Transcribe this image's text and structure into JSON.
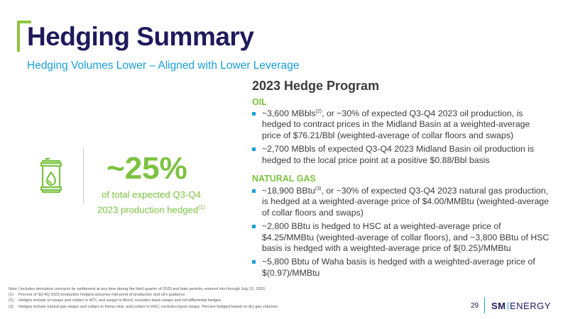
{
  "slide": {
    "title": "Hedging Summary",
    "subtitle": "Hedging Volumes Lower – Aligned with Lower Leverage",
    "page_number": "29"
  },
  "stat": {
    "value": "~25%",
    "desc_line1": "of total expected Q3-Q4",
    "desc_line2": "2023 production hedged",
    "desc_ref": "(1)",
    "icon": "oil-barrel-icon"
  },
  "program": {
    "title": "2023 Hedge Program",
    "oil": {
      "heading": "OIL",
      "bullets": [
        {
          "pre": "~3,600 MBbls",
          "ref": "(2)",
          "post": ", or ~30% of expected Q3-Q4 2023 oil production, is hedged to contract prices in the Midland Basin at a weighted-average price of $76.21/Bbl (weighted-average of collar floors and swaps)"
        },
        {
          "pre": "~2,700 MBbls of expected Q3-Q4 2023 Midland Basin oil production is hedged to the local price point at a positive $0.88/Bbl basis",
          "ref": "",
          "post": ""
        }
      ]
    },
    "gas": {
      "heading": "NATURAL GAS",
      "bullets": [
        {
          "pre": "~18,900 BBtu",
          "ref": "(3)",
          "post": ", or ~30% of expected Q3-Q4 2023 natural gas production, is hedged at a weighted-average price of $4.00/MMBtu (weighted-average of collar floors and swaps)"
        },
        {
          "pre": "~2,800 BBtu is hedged to HSC at a weighted-average price of $4.25/MMBtu (weighted-average of collar floors), and ~3,800 BBtu of HSC basis is hedged with a weighted-average price of $(0.25)/MMBtu",
          "ref": "",
          "post": ""
        },
        {
          "pre": "~5,800 Bbtu of Waha basis is hedged with a weighted-average price of $(0.97)/MMBtu",
          "ref": "",
          "post": ""
        }
      ]
    }
  },
  "footnotes": {
    "note": "Note | Includes derivative contracts for settlement at any time during the third quarter of 2023 and later periods, entered into through July 21, 2023.",
    "items": [
      {
        "num": "(1)",
        "text": "Percent of 3Q-4Q 2023 production hedged assumes mid-point of production and oil’s guidance."
      },
      {
        "num": "(2)",
        "text": "Hedges include oil swaps and collars to WTI, and swaps to Brent; excludes basis swaps and roll differential hedges."
      },
      {
        "num": "(3)",
        "text": "Hedges include natural gas swaps and collars to Henry Hub, and collars to HSC; excludes basis swaps. Percent hedged based on dry gas volumes."
      }
    ]
  },
  "logo": {
    "sm": "SM",
    "energy": "ENERGY"
  },
  "colors": {
    "navy": "#1f1a5c",
    "green": "#7cc242",
    "blue": "#1a9fd9"
  }
}
